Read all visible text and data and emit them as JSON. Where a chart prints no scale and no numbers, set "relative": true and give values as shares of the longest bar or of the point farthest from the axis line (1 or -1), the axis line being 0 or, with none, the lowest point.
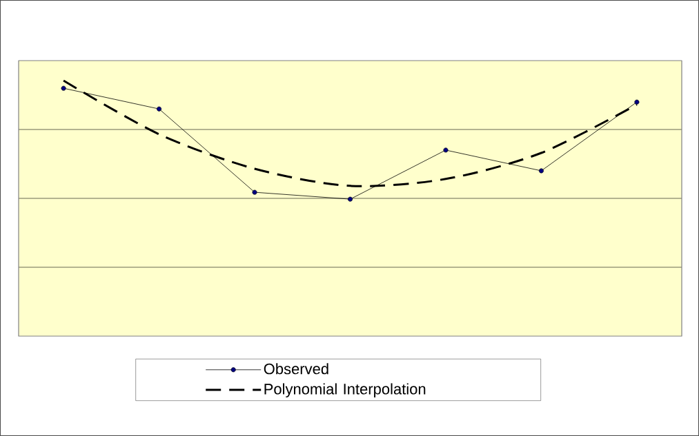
{
  "chart_data": {
    "type": "line",
    "relative": true,
    "grid": "y",
    "legend": "bottom",
    "categories": [
      null,
      null,
      null,
      null,
      null,
      null,
      null
    ],
    "series": [
      {
        "name": "Observed",
        "color": "#000000",
        "marker": "circle",
        "line_style": "solid",
        "values": [
          0.97,
          0.889,
          0.563,
          0.536,
          0.728,
          0.647,
          0.916
        ]
      },
      {
        "name": "Polynomial Interpolation",
        "color": "#000000",
        "marker": "none",
        "line_style": "dashed",
        "values": [
          1.0,
          0.79,
          0.655,
          0.588,
          0.615,
          0.717,
          0.906
        ]
      }
    ]
  }
}
